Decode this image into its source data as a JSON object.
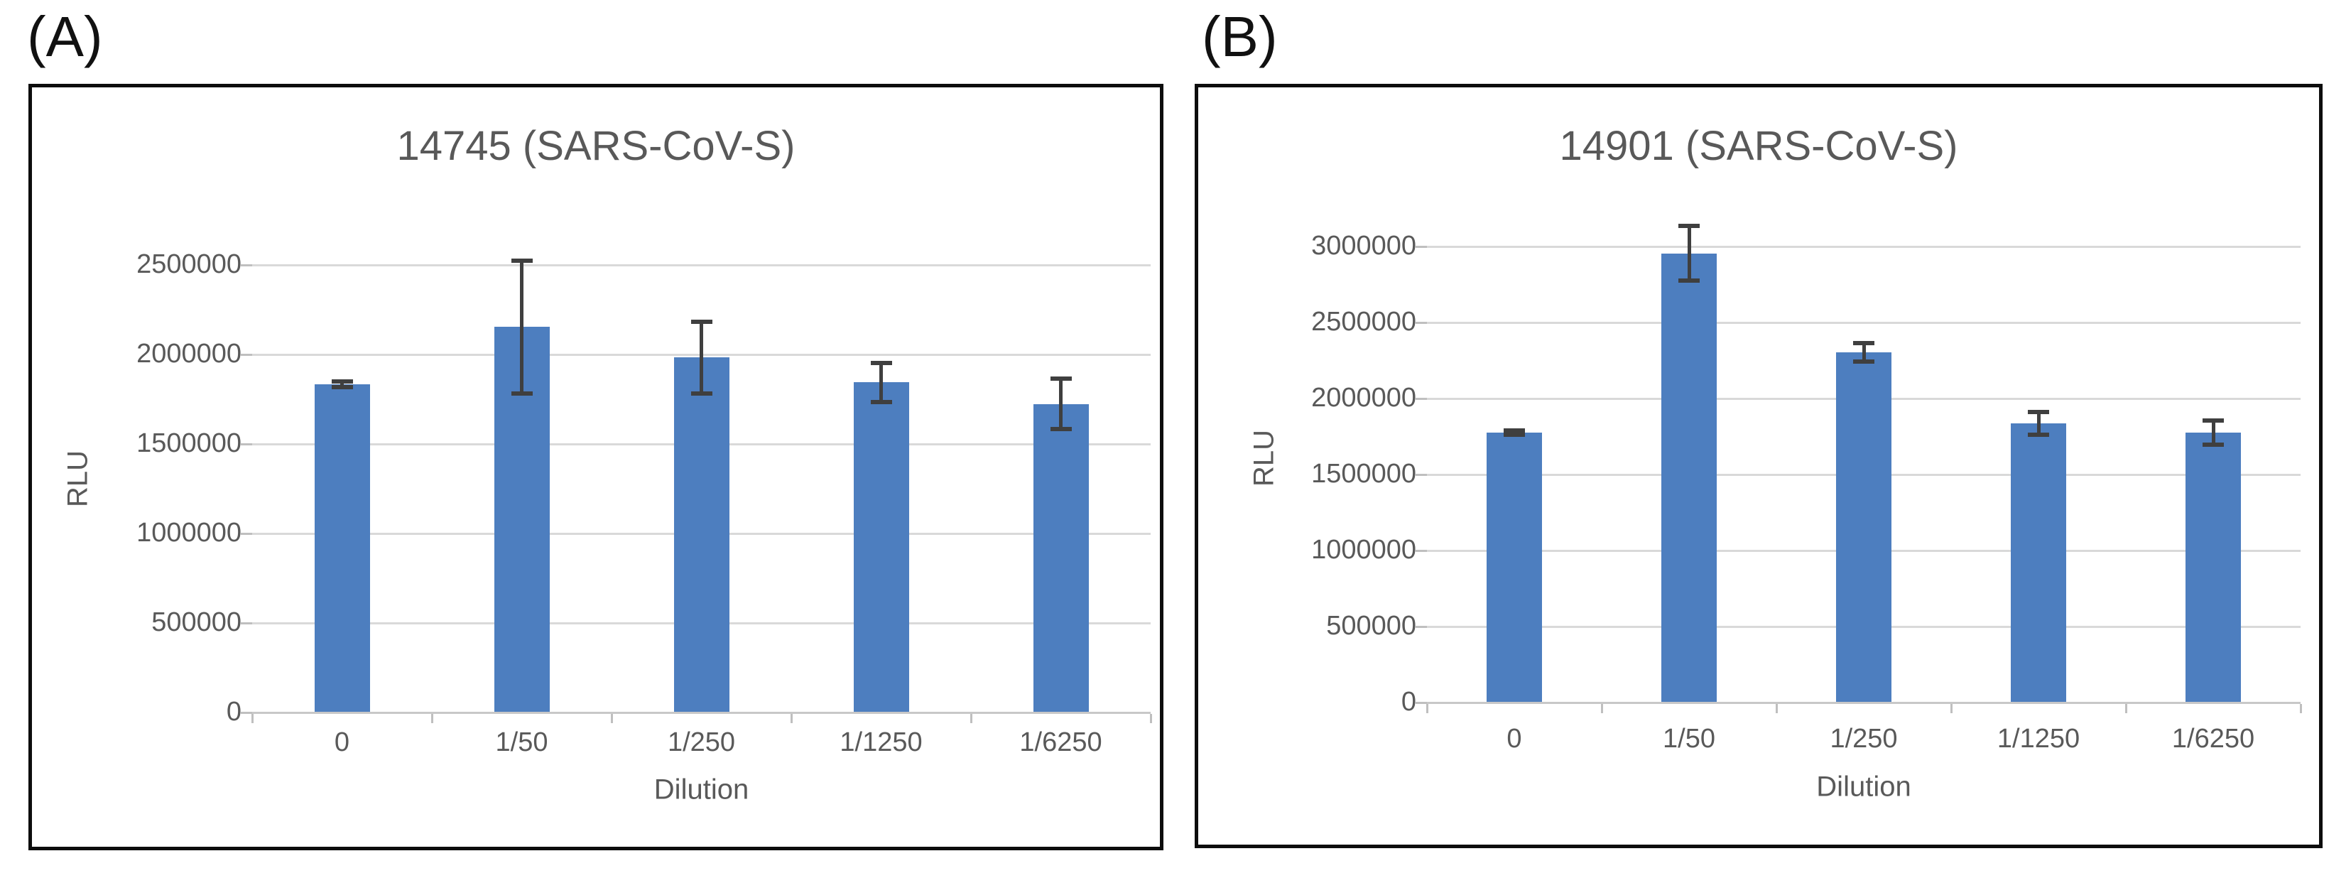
{
  "colors": {
    "bar": "#4d7ebf",
    "gridline": "#d9d9d9",
    "axis_line": "#c8c8c8",
    "tick": "#bfbfbf",
    "error_bar": "#3f3f3f",
    "text": "#595959",
    "panel_border": "#0d0d0d",
    "panel_label": "#111111"
  },
  "chart_data": [
    {
      "type": "bar",
      "panel_label": "(A)",
      "title": "14745 (SARS-CoV-S)",
      "xlabel": "Dilution",
      "ylabel": "RLU",
      "categories": [
        "0",
        "1/50",
        "1/250",
        "1/1250",
        "1/6250"
      ],
      "values": [
        1830000,
        2150000,
        1980000,
        1840000,
        1720000
      ],
      "errors": [
        15000,
        370000,
        200000,
        110000,
        140000
      ],
      "yticks": [
        0,
        500000,
        1000000,
        1500000,
        2000000,
        2500000
      ],
      "ylim": [
        0,
        2600000
      ],
      "grid": true,
      "legend": "none"
    },
    {
      "type": "bar",
      "panel_label": "(B)",
      "title": "14901 (SARS-CoV-S)",
      "xlabel": "Dilution",
      "ylabel": "RLU",
      "categories": [
        "0",
        "1/50",
        "1/250",
        "1/1250",
        "1/6250"
      ],
      "values": [
        1770000,
        2950000,
        2300000,
        1830000,
        1770000
      ],
      "errors": [
        15000,
        180000,
        60000,
        75000,
        80000
      ],
      "yticks": [
        0,
        500000,
        1000000,
        1500000,
        2000000,
        2500000,
        3000000
      ],
      "ylim": [
        0,
        3200000
      ],
      "grid": true,
      "legend": "none"
    }
  ]
}
